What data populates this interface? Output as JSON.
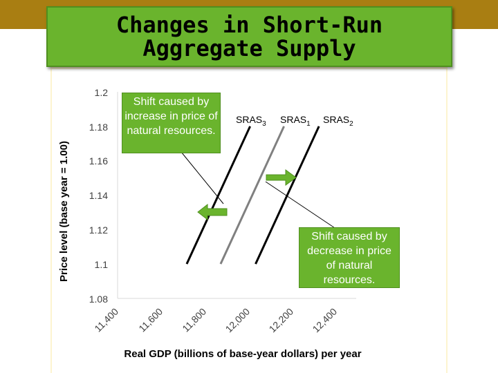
{
  "title": {
    "line1": "Changes in Short-Run",
    "line2": "Aggregate Supply"
  },
  "chart_data": {
    "type": "line",
    "xlabel": "Real GDP (billions of base-year dollars) per year",
    "ylabel": "Price level (base year = 1.00)",
    "x_ticks": [
      "11,400",
      "11,600",
      "11,800",
      "12,000",
      "12,200",
      "12,400"
    ],
    "y_ticks": [
      "1.2",
      "1.18",
      "1.16",
      "1.14",
      "1.12",
      "1.1",
      "1.08"
    ],
    "xlim": [
      11400,
      12400
    ],
    "ylim": [
      1.08,
      1.2
    ],
    "grid": false,
    "series": [
      {
        "name": "SRAS",
        "sub": "3",
        "color": "#000000",
        "x": [
          11710,
          12000
        ],
        "y": [
          1.1,
          1.18
        ]
      },
      {
        "name": "SRAS",
        "sub": "1",
        "color": "#808080",
        "x": [
          11865,
          12155
        ],
        "y": [
          1.1,
          1.18
        ]
      },
      {
        "name": "SRAS",
        "sub": "2",
        "color": "#000000",
        "x": [
          12025,
          12315
        ],
        "y": [
          1.1,
          1.18
        ]
      }
    ],
    "annotations": [
      {
        "text": "Shift caused by increase in price of natural resources.",
        "direction": "left"
      },
      {
        "text": "Shift caused by decrease in price of natural resources.",
        "direction": "right"
      }
    ],
    "arrow_color": "#6ab42d"
  }
}
